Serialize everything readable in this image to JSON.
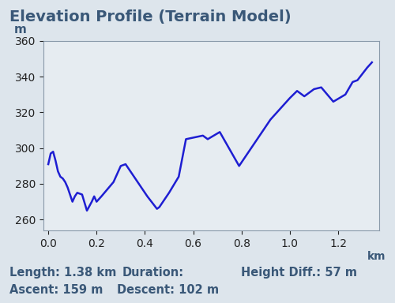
{
  "chart_data": {
    "type": "line",
    "title": "Elevation Profile (Terrain Model)",
    "y_label": "m",
    "x_label": "km",
    "x": [
      0.0,
      0.01,
      0.02,
      0.03,
      0.04,
      0.05,
      0.06,
      0.07,
      0.08,
      0.09,
      0.1,
      0.11,
      0.12,
      0.14,
      0.16,
      0.18,
      0.19,
      0.2,
      0.22,
      0.27,
      0.3,
      0.32,
      0.36,
      0.41,
      0.45,
      0.46,
      0.5,
      0.54,
      0.57,
      0.64,
      0.66,
      0.71,
      0.79,
      0.92,
      1.0,
      1.03,
      1.06,
      1.1,
      1.13,
      1.18,
      1.23,
      1.26,
      1.28,
      1.32,
      1.34
    ],
    "values": [
      291,
      297,
      298,
      293,
      287,
      284,
      283,
      281,
      278,
      274,
      270,
      273,
      275,
      274,
      265,
      270,
      273,
      270,
      273,
      281,
      290,
      291,
      283,
      273,
      266,
      267,
      275,
      284,
      305,
      307,
      305,
      309,
      290,
      316,
      328,
      332,
      329,
      333,
      334,
      326,
      330,
      337,
      338,
      345,
      348
    ],
    "color": "#1e1ed2",
    "xlim": [
      -0.02,
      1.37
    ],
    "xticks": [
      {
        "value": 0,
        "label": "0.0"
      },
      0.2,
      0.4,
      0.6,
      0.8,
      {
        "value": 1,
        "label": "1.0"
      },
      1.2
    ],
    "ylim": [
      254,
      360
    ],
    "yticks": [
      260,
      280,
      300,
      320,
      340,
      360
    ],
    "grid": false,
    "annotations": [
      [
        "Length: 1.38 km",
        "Duration:",
        "Height Diff.: 57 m"
      ],
      [
        "Ascent: 159 m",
        "Descent: 102 m"
      ]
    ]
  }
}
